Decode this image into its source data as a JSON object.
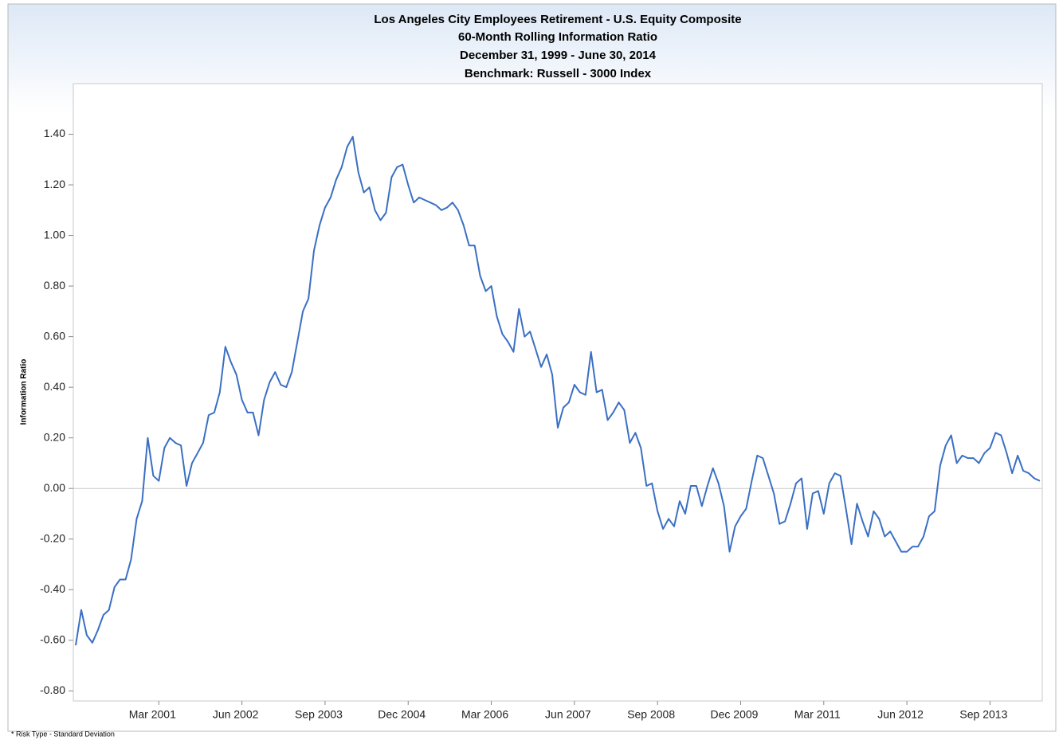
{
  "chart_data": {
    "type": "line",
    "title": [
      "Los Angeles City Employees Retirement    - U.S. Equity Composite",
      "60-Month Rolling Information Ratio",
      "December 31, 1999 - June 30, 2014",
      "Benchmark: Russell - 3000 Index"
    ],
    "y_label": "Information Ratio",
    "footnote": "* Risk Type - Standard Deviation",
    "categories": [
      null,
      null,
      null,
      null,
      null,
      null,
      null,
      null,
      null,
      null,
      null,
      null,
      null,
      null,
      null,
      "Mar 2001",
      null,
      null,
      null,
      null,
      null,
      null,
      null,
      null,
      null,
      null,
      null,
      null,
      null,
      null,
      "Jun 2002",
      null,
      null,
      null,
      null,
      null,
      null,
      null,
      null,
      null,
      null,
      null,
      null,
      null,
      null,
      "Sep 2003",
      null,
      null,
      null,
      null,
      null,
      null,
      null,
      null,
      null,
      null,
      null,
      null,
      null,
      null,
      "Dec 2004",
      null,
      null,
      null,
      null,
      null,
      null,
      null,
      null,
      null,
      null,
      null,
      null,
      null,
      null,
      "Mar 2006",
      null,
      null,
      null,
      null,
      null,
      null,
      null,
      null,
      null,
      null,
      null,
      null,
      null,
      null,
      "Jun 2007",
      null,
      null,
      null,
      null,
      null,
      null,
      null,
      null,
      null,
      null,
      null,
      null,
      null,
      null,
      "Sep 2008",
      null,
      null,
      null,
      null,
      null,
      null,
      null,
      null,
      null,
      null,
      null,
      null,
      null,
      null,
      "Dec 2009",
      null,
      null,
      null,
      null,
      null,
      null,
      null,
      null,
      null,
      null,
      null,
      null,
      null,
      null,
      "Mar 2011",
      null,
      null,
      null,
      null,
      null,
      null,
      null,
      null,
      null,
      null,
      null,
      null,
      null,
      null,
      "Jun 2012",
      null,
      null,
      null,
      null,
      null,
      null,
      null,
      null,
      null,
      null,
      null,
      null,
      null,
      null,
      "Sep 2013",
      null,
      null,
      null,
      null,
      null,
      null,
      null,
      null,
      null
    ],
    "series": [
      {
        "name": "U.S. Equity Composite",
        "color": "#3a6fc4",
        "values": [
          -0.62,
          -0.48,
          -0.58,
          -0.61,
          -0.56,
          -0.5,
          -0.48,
          -0.39,
          -0.36,
          -0.36,
          -0.28,
          -0.12,
          -0.05,
          0.2,
          0.05,
          0.03,
          0.16,
          0.2,
          0.18,
          0.17,
          0.01,
          0.1,
          0.14,
          0.18,
          0.29,
          0.3,
          0.38,
          0.56,
          0.5,
          0.45,
          0.35,
          0.3,
          0.3,
          0.21,
          0.35,
          0.42,
          0.46,
          0.41,
          0.4,
          0.46,
          0.58,
          0.7,
          0.75,
          0.94,
          1.04,
          1.11,
          1.15,
          1.22,
          1.27,
          1.35,
          1.39,
          1.25,
          1.17,
          1.19,
          1.1,
          1.06,
          1.09,
          1.23,
          1.27,
          1.28,
          1.2,
          1.13,
          1.15,
          1.14,
          1.13,
          1.12,
          1.1,
          1.11,
          1.13,
          1.1,
          1.04,
          0.96,
          0.96,
          0.84,
          0.78,
          0.8,
          0.68,
          0.61,
          0.58,
          0.54,
          0.71,
          0.6,
          0.62,
          0.55,
          0.48,
          0.53,
          0.45,
          0.24,
          0.32,
          0.34,
          0.41,
          0.38,
          0.37,
          0.54,
          0.38,
          0.39,
          0.27,
          0.3,
          0.34,
          0.31,
          0.18,
          0.22,
          0.16,
          0.01,
          0.02,
          -0.09,
          -0.16,
          -0.12,
          -0.15,
          -0.05,
          -0.1,
          0.01,
          0.01,
          -0.07,
          0.01,
          0.08,
          0.02,
          -0.07,
          -0.25,
          -0.15,
          -0.11,
          -0.08,
          0.03,
          0.13,
          0.12,
          0.05,
          -0.02,
          -0.14,
          -0.13,
          -0.06,
          0.02,
          0.04,
          -0.16,
          -0.02,
          -0.01,
          -0.1,
          0.02,
          0.06,
          0.05,
          -0.08,
          -0.22,
          -0.06,
          -0.13,
          -0.19,
          -0.09,
          -0.12,
          -0.19,
          -0.17,
          -0.21,
          -0.25,
          -0.25,
          -0.23,
          -0.23,
          -0.19,
          -0.11,
          -0.09,
          0.09,
          0.17,
          0.21,
          0.1,
          0.13,
          0.12,
          0.12,
          0.1,
          0.14,
          0.16,
          0.22,
          0.21,
          0.14,
          0.06,
          0.13,
          0.07,
          0.06,
          0.04,
          0.03
        ]
      }
    ],
    "ylim": [
      -0.84,
      1.6
    ],
    "yticks": [
      {
        "value": -0.8,
        "label": "-0.80"
      },
      {
        "value": -0.6,
        "label": "-0.60"
      },
      {
        "value": -0.4,
        "label": "-0.40"
      },
      {
        "value": -0.2,
        "label": "-0.20"
      },
      {
        "value": 0,
        "label": "0.00"
      },
      {
        "value": 0.2,
        "label": "0.20"
      },
      {
        "value": 0.4,
        "label": "0.40"
      },
      {
        "value": 0.6,
        "label": "0.60"
      },
      {
        "value": 0.8,
        "label": "0.80"
      },
      {
        "value": 1.0,
        "label": "1.00"
      },
      {
        "value": 1.2,
        "label": "1.20"
      },
      {
        "value": 1.4,
        "label": "1.40"
      }
    ],
    "zero_line": true
  }
}
